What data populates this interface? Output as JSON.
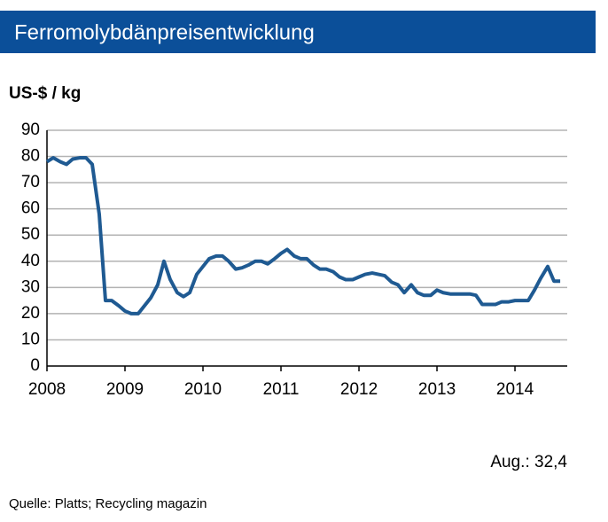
{
  "chart_data": {
    "type": "line",
    "title": "Ferromolybdänpreisentwicklung",
    "y_label": "US-$ / kg",
    "annotation": "Aug.: 32,4",
    "source": "Quelle:  Platts; Recycling magazin",
    "x": [
      2008.0,
      2008.08,
      2008.17,
      2008.25,
      2008.33,
      2008.42,
      2008.5,
      2008.58,
      2008.67,
      2008.75,
      2008.83,
      2008.92,
      2009.0,
      2009.08,
      2009.17,
      2009.25,
      2009.33,
      2009.42,
      2009.5,
      2009.58,
      2009.67,
      2009.75,
      2009.83,
      2009.92,
      2010.0,
      2010.08,
      2010.17,
      2010.25,
      2010.33,
      2010.42,
      2010.5,
      2010.58,
      2010.67,
      2010.75,
      2010.83,
      2010.92,
      2011.0,
      2011.08,
      2011.17,
      2011.25,
      2011.33,
      2011.42,
      2011.5,
      2011.58,
      2011.67,
      2011.75,
      2011.83,
      2011.92,
      2012.0,
      2012.08,
      2012.17,
      2012.25,
      2012.33,
      2012.42,
      2012.5,
      2012.58,
      2012.67,
      2012.75,
      2012.83,
      2012.92,
      2013.0,
      2013.08,
      2013.17,
      2013.25,
      2013.33,
      2013.42,
      2013.5,
      2013.58,
      2013.67,
      2013.75,
      2013.83,
      2013.92,
      2014.0,
      2014.08,
      2014.17,
      2014.25,
      2014.33,
      2014.42,
      2014.5,
      2014.58
    ],
    "values": [
      78,
      79.5,
      78,
      77,
      79,
      79.5,
      79.5,
      77,
      58,
      25,
      25,
      23,
      21,
      20,
      20,
      23,
      26,
      31,
      40,
      33,
      28,
      26.5,
      28,
      35,
      38,
      41,
      42,
      42,
      40,
      37,
      37.5,
      38.5,
      40,
      40,
      39,
      41,
      43,
      44.5,
      42,
      41,
      41,
      38.5,
      37,
      37,
      36,
      34,
      33,
      33,
      34,
      35,
      35.5,
      35,
      34.5,
      32,
      31,
      28,
      31,
      28,
      27,
      27,
      29,
      28,
      27.5,
      27.5,
      27.5,
      27.5,
      27,
      23.5,
      23.5,
      23.5,
      24.5,
      24.5,
      25,
      25,
      25,
      29,
      33.5,
      38,
      32.4,
      32.4
    ],
    "color": "#1f5a92",
    "xlim": [
      2008,
      2014.67
    ],
    "xticks": [
      2008,
      2009,
      2010,
      2011,
      2012,
      2013,
      2014
    ],
    "ylim": [
      0,
      90
    ],
    "yticks": [
      0,
      10,
      20,
      30,
      40,
      50,
      60,
      70,
      80,
      90
    ],
    "grid": true
  }
}
